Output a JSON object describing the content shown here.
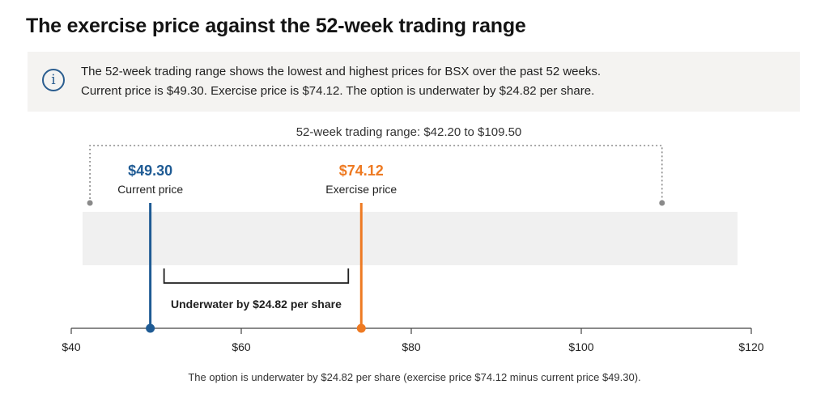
{
  "title": "The exercise price against the 52-week trading range",
  "info": {
    "icon": "info-icon",
    "line1": "The 52-week trading range shows the lowest and highest prices for BSX over the past 52 weeks.",
    "line2": "Current price is $49.30. Exercise price is $74.12. The option is underwater by $24.82 per share."
  },
  "chart_data": {
    "type": "range",
    "range_label": "52-week trading range: $42.20 to $109.50",
    "range": {
      "low": 42.2,
      "high": 109.5
    },
    "xlim": [
      40,
      120
    ],
    "ticks": [
      {
        "value": 40,
        "label": "$40"
      },
      {
        "value": 60,
        "label": "$60"
      },
      {
        "value": 80,
        "label": "$80"
      },
      {
        "value": 100,
        "label": "$100"
      },
      {
        "value": 120,
        "label": "$120"
      }
    ],
    "markers": [
      {
        "id": "current",
        "value": 49.3,
        "value_label": "$49.30",
        "label": "Current price",
        "color": "#1f5b94"
      },
      {
        "id": "exercise",
        "value": 74.12,
        "value_label": "$74.12",
        "label": "Exercise price",
        "color": "#ee7a22"
      }
    ],
    "gap_label": "Underwater by $24.82 per share",
    "footnote": "The option is underwater by $24.82 per share (exercise price $74.12 minus current price $49.30)."
  }
}
